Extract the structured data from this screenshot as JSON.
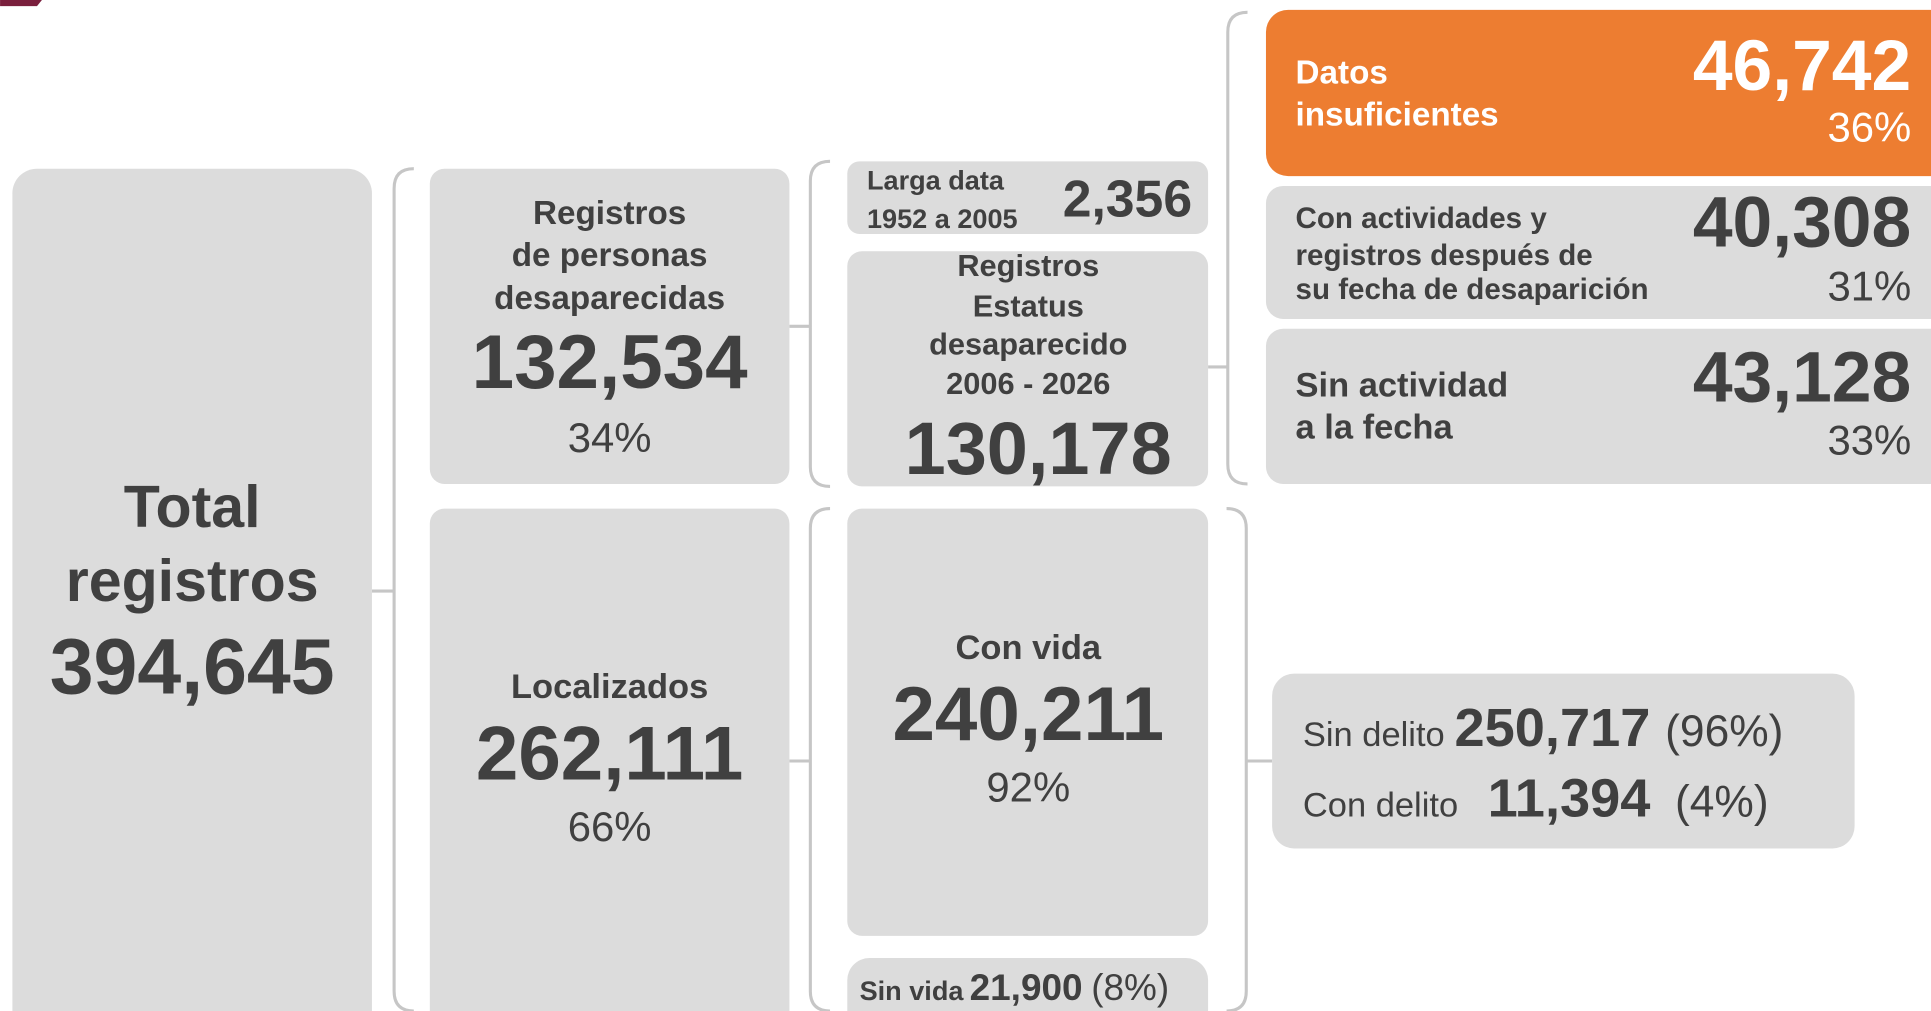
{
  "nodes": {
    "total": {
      "label": [
        "Total",
        "registros"
      ],
      "value": "394,645"
    },
    "desaparecidas": {
      "label": [
        "Registros",
        "de personas",
        "desaparecidas"
      ],
      "value": "132,534",
      "share": "34%"
    },
    "localizados": {
      "label": [
        "Localizados"
      ],
      "value": "262,111",
      "share": "66%"
    },
    "larga_data": {
      "label": [
        "Larga data",
        "1952 a 2005"
      ],
      "value": "2,356"
    },
    "estatus": {
      "label": [
        "Registros",
        "Estatus",
        "desaparecido",
        "2006 - 2026"
      ],
      "value": "130,178"
    },
    "con_vida": {
      "label": [
        "Con vida"
      ],
      "value": "240,211",
      "share": "92%"
    },
    "sin_vida": {
      "label": "Sin vida",
      "value": "21,900",
      "share": "(8%)"
    },
    "datos_insuficientes": {
      "label": [
        "Datos",
        "insuficientes"
      ],
      "value": "46,742",
      "share": "36%"
    },
    "con_actividades": {
      "label": [
        "Con actividades y",
        "registros después de",
        "su fecha de desaparición"
      ],
      "value": "40,308",
      "share": "31%"
    },
    "sin_actividad": {
      "label": [
        "Sin actividad",
        "a la fecha"
      ],
      "value": "43,128",
      "share": "33%"
    },
    "delito": [
      {
        "label": "Sin delito",
        "value": "250,717",
        "share": "(96%)"
      },
      {
        "label": "Con delito",
        "value": "11,394",
        "share": "(4%)"
      }
    ]
  }
}
